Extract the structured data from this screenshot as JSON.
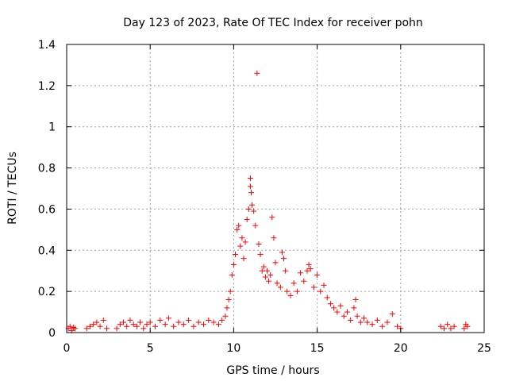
{
  "chart_data": {
    "type": "scatter",
    "title": "Day 123 of 2023, Rate Of TEC Index for receiver pohn",
    "xlabel": "GPS time / hours",
    "ylabel": "ROTI / TECUs",
    "xlim": [
      0,
      25
    ],
    "ylim": [
      0,
      1.4
    ],
    "xticks": [
      0,
      5,
      10,
      15,
      20,
      25
    ],
    "yticks": [
      0,
      0.2,
      0.4,
      0.6,
      0.8,
      1,
      1.2,
      1.4
    ],
    "xtick_labels": [
      "0",
      "5",
      "10",
      "15",
      "20",
      "25"
    ],
    "ytick_labels": [
      "0",
      "0.2",
      "0.4",
      "0.6",
      "0.8",
      "1",
      "1.2",
      "1.4"
    ],
    "grid": true,
    "marker": "+",
    "marker_color": "#ff0000",
    "series": [
      {
        "name": "ROTI",
        "points": [
          [
            0.1,
            0.02
          ],
          [
            0.2,
            0.03
          ],
          [
            0.3,
            0.01
          ],
          [
            0.4,
            0.025
          ],
          [
            0.5,
            0.02
          ],
          [
            1.2,
            0.02
          ],
          [
            1.4,
            0.03
          ],
          [
            1.6,
            0.04
          ],
          [
            1.8,
            0.05
          ],
          [
            2.0,
            0.03
          ],
          [
            2.2,
            0.06
          ],
          [
            2.4,
            0.02
          ],
          [
            3.0,
            0.02
          ],
          [
            3.2,
            0.04
          ],
          [
            3.4,
            0.05
          ],
          [
            3.6,
            0.03
          ],
          [
            3.8,
            0.06
          ],
          [
            4.0,
            0.04
          ],
          [
            4.2,
            0.03
          ],
          [
            4.4,
            0.05
          ],
          [
            4.6,
            0.02
          ],
          [
            4.8,
            0.04
          ],
          [
            5.0,
            0.05
          ],
          [
            5.3,
            0.03
          ],
          [
            5.6,
            0.06
          ],
          [
            5.9,
            0.04
          ],
          [
            6.1,
            0.07
          ],
          [
            6.4,
            0.03
          ],
          [
            6.7,
            0.05
          ],
          [
            7.0,
            0.04
          ],
          [
            7.3,
            0.06
          ],
          [
            7.6,
            0.03
          ],
          [
            7.9,
            0.05
          ],
          [
            8.2,
            0.04
          ],
          [
            8.5,
            0.06
          ],
          [
            8.8,
            0.05
          ],
          [
            9.1,
            0.04
          ],
          [
            9.3,
            0.06
          ],
          [
            9.5,
            0.08
          ],
          [
            9.6,
            0.12
          ],
          [
            9.7,
            0.16
          ],
          [
            9.8,
            0.2
          ],
          [
            9.9,
            0.28
          ],
          [
            10.0,
            0.33
          ],
          [
            10.1,
            0.38
          ],
          [
            10.2,
            0.5
          ],
          [
            10.3,
            0.52
          ],
          [
            10.4,
            0.42
          ],
          [
            10.5,
            0.46
          ],
          [
            10.6,
            0.36
          ],
          [
            10.7,
            0.44
          ],
          [
            10.8,
            0.55
          ],
          [
            10.9,
            0.6
          ],
          [
            11.0,
            0.75
          ],
          [
            11.0,
            0.71
          ],
          [
            11.05,
            0.68
          ],
          [
            11.1,
            0.62
          ],
          [
            11.2,
            0.59
          ],
          [
            11.3,
            0.52
          ],
          [
            11.4,
            1.26
          ],
          [
            11.5,
            0.43
          ],
          [
            11.6,
            0.38
          ],
          [
            11.7,
            0.3
          ],
          [
            11.8,
            0.32
          ],
          [
            11.9,
            0.27
          ],
          [
            12.0,
            0.3
          ],
          [
            12.1,
            0.25
          ],
          [
            12.2,
            0.28
          ],
          [
            12.3,
            0.56
          ],
          [
            12.4,
            0.46
          ],
          [
            12.5,
            0.34
          ],
          [
            12.6,
            0.24
          ],
          [
            12.8,
            0.22
          ],
          [
            12.9,
            0.39
          ],
          [
            13.0,
            0.36
          ],
          [
            13.1,
            0.3
          ],
          [
            13.2,
            0.2
          ],
          [
            13.4,
            0.18
          ],
          [
            13.6,
            0.24
          ],
          [
            13.8,
            0.2
          ],
          [
            14.0,
            0.29
          ],
          [
            14.2,
            0.25
          ],
          [
            14.4,
            0.3
          ],
          [
            14.5,
            0.33
          ],
          [
            14.6,
            0.31
          ],
          [
            14.8,
            0.22
          ],
          [
            15.0,
            0.28
          ],
          [
            15.2,
            0.2
          ],
          [
            15.4,
            0.23
          ],
          [
            15.6,
            0.17
          ],
          [
            15.8,
            0.14
          ],
          [
            16.0,
            0.12
          ],
          [
            16.2,
            0.1
          ],
          [
            16.4,
            0.13
          ],
          [
            16.6,
            0.08
          ],
          [
            16.8,
            0.1
          ],
          [
            17.0,
            0.06
          ],
          [
            17.2,
            0.12
          ],
          [
            17.3,
            0.16
          ],
          [
            17.4,
            0.08
          ],
          [
            17.6,
            0.05
          ],
          [
            17.8,
            0.07
          ],
          [
            18.0,
            0.05
          ],
          [
            18.3,
            0.04
          ],
          [
            18.6,
            0.06
          ],
          [
            18.9,
            0.03
          ],
          [
            19.2,
            0.05
          ],
          [
            19.5,
            0.09
          ],
          [
            19.8,
            0.03
          ],
          [
            20.0,
            0.02
          ],
          [
            22.4,
            0.03
          ],
          [
            22.6,
            0.02
          ],
          [
            22.8,
            0.04
          ],
          [
            23.0,
            0.02
          ],
          [
            23.2,
            0.03
          ],
          [
            23.8,
            0.02
          ],
          [
            23.9,
            0.04
          ],
          [
            24.0,
            0.03
          ]
        ]
      }
    ]
  }
}
